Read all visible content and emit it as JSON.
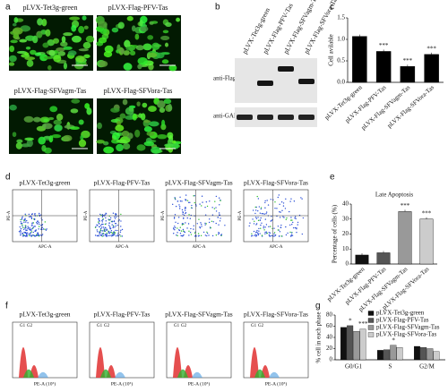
{
  "figure": {
    "panels": [
      "a",
      "b",
      "c",
      "d",
      "e",
      "f",
      "g"
    ],
    "a": {
      "captions": [
        "pLVX-Tet3g-green",
        "pLVX-Flag-PFV-Tas",
        "pLVX-Flag-SFVagm-Tas",
        "pLVX-Flag-SFVora-Tas"
      ]
    },
    "b": {
      "lanes": [
        "pLVX-Tet3g-green",
        "pLVX-Flag-PFV-Tas",
        "pLVX-Flag-SFVagm-Tas",
        "pLVX-Flag-SFVora-Tas"
      ],
      "bands": [
        "anti-Flag:",
        "anti-GAPDH:"
      ]
    },
    "d": {
      "titles": [
        "pLVX-Tet3g-green",
        "pLVX-Flag-PFV-Tas",
        "pLVX-Flag-SFVagm-Tas",
        "pLVX-Flag-SFVora-Tas"
      ],
      "x_label": "APC-A",
      "y_label": "PE-A"
    },
    "f": {
      "titles": [
        "pLVX-Tet3g-green",
        "pLVX-Flag-PFV-Tas",
        "pLVX-Flag-SFVagm-Tas",
        "pLVX-Flag-SFVora-Tas"
      ],
      "x_label": "PE-A (10⁵)",
      "peak_labels": [
        "G1",
        "G2"
      ]
    }
  },
  "chart_data": [
    {
      "type": "bar",
      "y_label": "Cell avilable",
      "categories": [
        "pLVX-Tet3g-green",
        "pLVX-Flag-PFV-Tas",
        "pLVX-Flag-SFVagm-Tas",
        "pLVX-Flag-SFVora-Tas"
      ],
      "values": [
        1.07,
        0.72,
        0.37,
        0.65
      ],
      "colors": [
        "#000000",
        "#000000",
        "#000000",
        "#000000"
      ],
      "significance": [
        null,
        "***",
        "***",
        "***"
      ],
      "ylim": [
        0,
        1.5
      ],
      "yticks": [
        {
          "value": 0,
          "label": "0.0"
        },
        0.5,
        {
          "value": 1,
          "label": "1.0"
        },
        1.5
      ]
    },
    {
      "type": "bar",
      "title": "Late Apoptosis",
      "y_label": "Percentage of cells (%)",
      "categories": [
        "pLVX-Tet3g-green",
        "pLVX-Flag-PFV-Tas",
        "pLVX-Flag-SFVagm-Tas",
        "pLVX-Flag-SFVora-Tas"
      ],
      "values": [
        6,
        7.5,
        35,
        30
      ],
      "colors": [
        "#111111",
        "#555555",
        "#999999",
        "#cccccc"
      ],
      "significance": [
        null,
        null,
        "***",
        "***"
      ],
      "ylim": [
        0,
        40
      ],
      "yticks": [
        0,
        10,
        20,
        30,
        40
      ]
    },
    {
      "type": "grouped-bar",
      "y_label": "% cell in each phase",
      "categories": [
        "G0/G1",
        "S",
        "G2/M"
      ],
      "series": [
        {
          "name": "pLVX-Tet3g-green",
          "color": "#111111",
          "values": [
            58,
            17,
            24
          ],
          "significance": [
            null,
            null,
            null
          ]
        },
        {
          "name": "pLVX-Flag-PFV-Tas",
          "color": "#555555",
          "values": [
            61,
            18,
            22
          ],
          "significance": [
            "*",
            null,
            null
          ]
        },
        {
          "name": "pLVX-Flag-SFVagm-Tas",
          "color": "#999999",
          "values": [
            51,
            26,
            20
          ],
          "significance": [
            null,
            "*",
            null
          ]
        },
        {
          "name": "pLVX-Flag-SFVora-Tas",
          "color": "#cccccc",
          "values": [
            55,
            22,
            15
          ],
          "significance": [
            "***",
            null,
            null
          ]
        }
      ],
      "ylim": [
        0,
        80
      ],
      "yticks": [
        0,
        20,
        40,
        60,
        80
      ]
    }
  ]
}
